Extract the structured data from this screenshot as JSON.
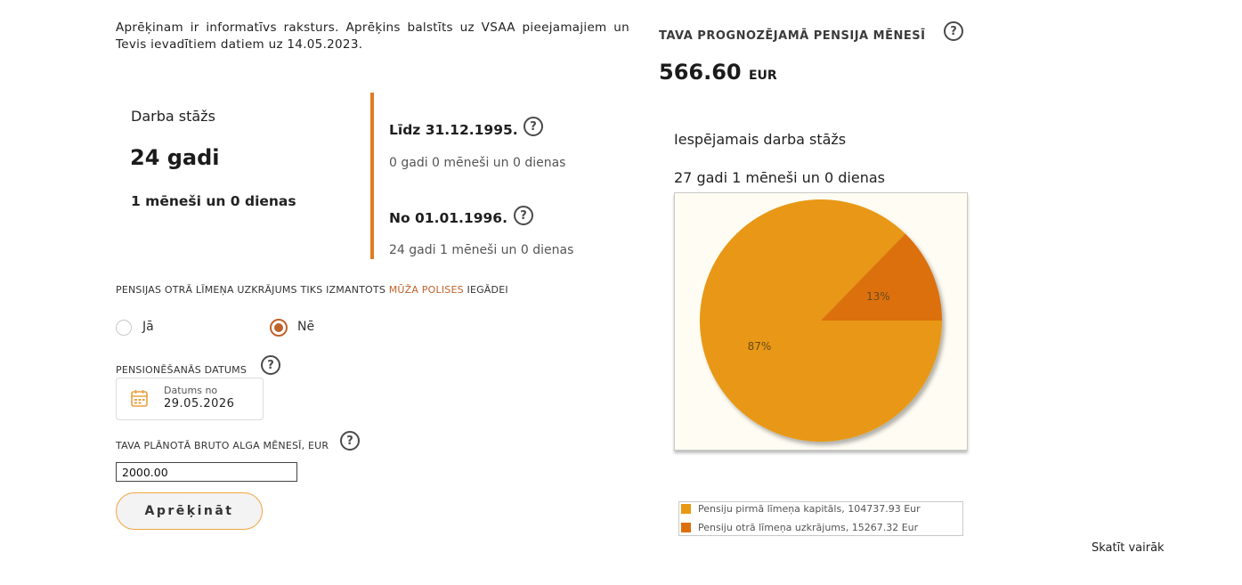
{
  "intro_text": "Aprēķinam ir informatīvs raksturs. Aprēķins balstīts uz VSAA pieejamajiem un Tevis ievadītiem datiem uz 14.05.2023.",
  "work_experience": {
    "title": "Darba stāžs",
    "years": "24 gadi",
    "rest": "1 mēneši un 0 dienas",
    "periods": [
      {
        "title": "Līdz 31.12.1995.",
        "value": "0 gadi 0 mēneši un 0 dienas"
      },
      {
        "title": "No 01.01.1996.",
        "value": "24 gadi 1 mēneši un 0 dienas"
      }
    ]
  },
  "second_pillar": {
    "label_before": "PENSIJAS OTRĀ LĪMEŅA UZKRĀJUMS TIKS IZMANTOTS ",
    "link_text": "MŪŽA POLISES",
    "label_after": " IEGĀDEI",
    "options": [
      {
        "label": "Jā",
        "selected": false
      },
      {
        "label": "Nē",
        "selected": true
      }
    ]
  },
  "retirement_date": {
    "label": "PENSIONĒŠANĀS DATUMS",
    "small_label": "Datums no",
    "value": "29.05.2026",
    "icon": "calendar-icon"
  },
  "salary": {
    "label": "TAVA PLĀNOTĀ BRUTO ALGA MĒNESĪ, EUR",
    "value": "2000.00"
  },
  "calculate_label": "Aprēķināt",
  "help_glyph": "?",
  "pension": {
    "title": "TAVA PROGNOZĒJAMĀ PENSIJA MĒNESĪ",
    "amount": "566.60",
    "unit": "EUR"
  },
  "possible_experience": {
    "title": "Iespējamais darba stāžs",
    "value": "27 gadi 1 mēneši un 0 dienas"
  },
  "chart_data": {
    "type": "pie",
    "slices": [
      {
        "label": "Pensiju pirmā līmeņa kapitāls, 104737.93 Eur",
        "value": 104737.93,
        "percent_label": "87%",
        "color": "#e89812"
      },
      {
        "label": "Pensiju otrā līmeņa uzkrājums, 15267.32 Eur",
        "value": 15267.32,
        "percent_label": "13%",
        "color": "#dc7010"
      }
    ],
    "background": "#fffdf3",
    "legend": "bottom"
  },
  "more_link": "Skatīt vairāk",
  "colors": {
    "accent": "#e07b24",
    "link": "#c0632b",
    "button_border": "#f0a640"
  }
}
